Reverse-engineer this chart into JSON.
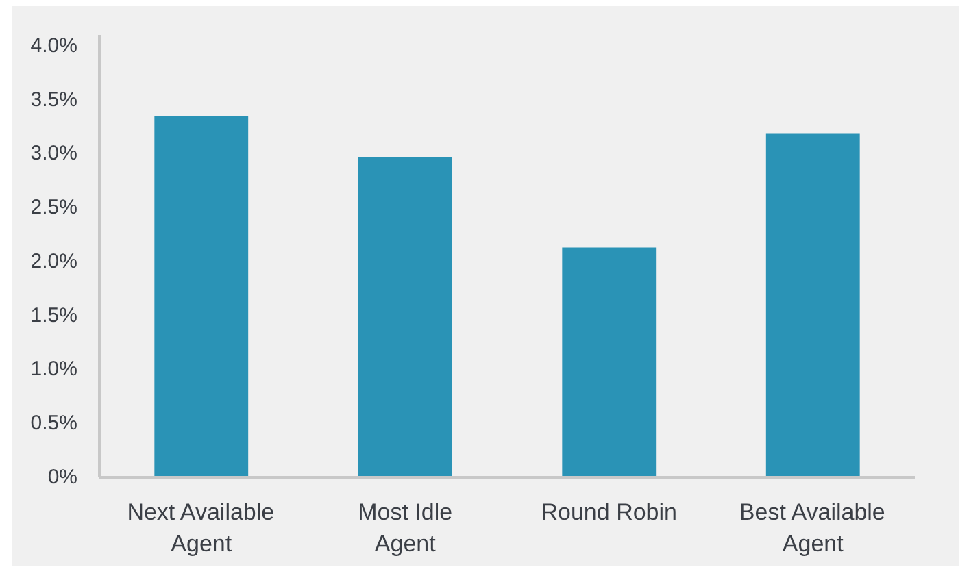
{
  "chart_data": {
    "type": "bar",
    "categories": [
      "Next Available Agent",
      "Most Idle Agent",
      "Round Robin",
      "Best Available Agent"
    ],
    "values": [
      3.35,
      2.97,
      2.13,
      3.19
    ],
    "color": "#2a93b6",
    "ylim": [
      0,
      4.1
    ],
    "yticks": [
      {
        "value": 0,
        "label": "0%"
      },
      {
        "value": 0.5,
        "label": "0.5%"
      },
      {
        "value": 1.0,
        "label": "1.0%"
      },
      {
        "value": 1.5,
        "label": "1.5%"
      },
      {
        "value": 2.0,
        "label": "2.0%"
      },
      {
        "value": 2.5,
        "label": "2.5%"
      },
      {
        "value": 3.0,
        "label": "3.0%"
      },
      {
        "value": 3.5,
        "label": "3.5%"
      },
      {
        "value": 4.0,
        "label": "4.0%"
      }
    ]
  }
}
